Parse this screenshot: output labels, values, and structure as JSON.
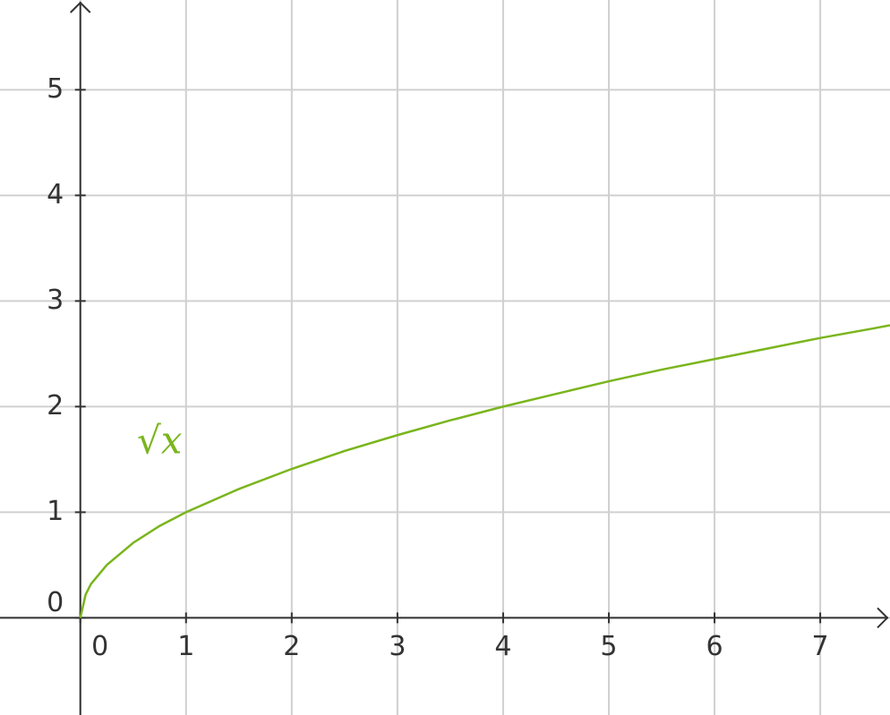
{
  "chart_data": {
    "type": "line",
    "x": [
      0,
      0.05,
      0.1,
      0.25,
      0.5,
      0.75,
      1,
      1.5,
      2,
      2.5,
      3,
      3.5,
      4,
      4.5,
      5,
      5.5,
      6,
      6.5,
      7,
      7.5,
      7.66
    ],
    "series": [
      {
        "name": "√x",
        "color": "#7ab51d",
        "values": [
          0,
          0.22,
          0.32,
          0.5,
          0.71,
          0.87,
          1,
          1.22,
          1.41,
          1.58,
          1.73,
          1.87,
          2,
          2.12,
          2.24,
          2.35,
          2.45,
          2.55,
          2.65,
          2.74,
          2.77
        ]
      }
    ],
    "xlim": [
      -0.76,
      7.66
    ],
    "ylim": [
      -0.92,
      5.85
    ],
    "xticks": [
      0,
      1,
      2,
      3,
      4,
      5,
      6,
      7
    ],
    "yticks": [
      0,
      1,
      2,
      3,
      4,
      5
    ],
    "grid": true
  }
}
